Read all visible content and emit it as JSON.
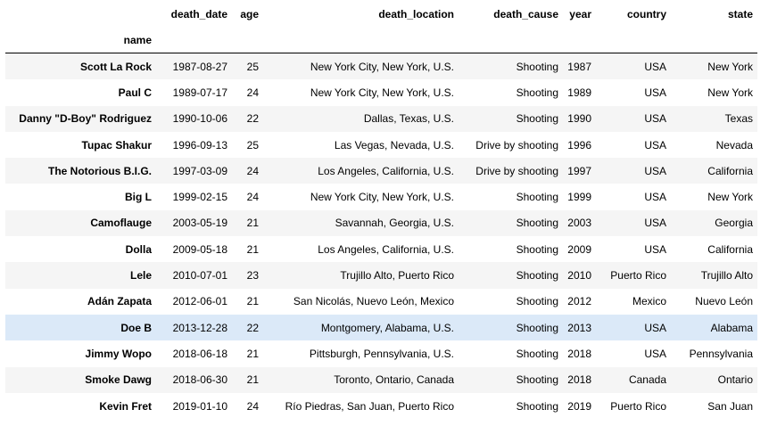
{
  "columns": [
    "death_date",
    "age",
    "death_location",
    "death_cause",
    "year",
    "country",
    "state"
  ],
  "index_name": "name",
  "rows": [
    {
      "name": "Scott La Rock",
      "cells": [
        "1987-08-27",
        "25",
        "New York City, New York, U.S.",
        "Shooting",
        "1987",
        "USA",
        "New York"
      ]
    },
    {
      "name": "Paul C",
      "cells": [
        "1989-07-17",
        "24",
        "New York City, New York, U.S.",
        "Shooting",
        "1989",
        "USA",
        "New York"
      ]
    },
    {
      "name": "Danny \"D-Boy\" Rodriguez",
      "cells": [
        "1990-10-06",
        "22",
        "Dallas, Texas, U.S.",
        "Shooting",
        "1990",
        "USA",
        "Texas"
      ]
    },
    {
      "name": "Tupac Shakur",
      "cells": [
        "1996-09-13",
        "25",
        "Las Vegas, Nevada, U.S.",
        "Drive by shooting",
        "1996",
        "USA",
        "Nevada"
      ]
    },
    {
      "name": "The Notorious B.I.G.",
      "cells": [
        "1997-03-09",
        "24",
        "Los Angeles, California, U.S.",
        "Drive by shooting",
        "1997",
        "USA",
        "California"
      ]
    },
    {
      "name": "Big L",
      "cells": [
        "1999-02-15",
        "24",
        "New York City, New York, U.S.",
        "Shooting",
        "1999",
        "USA",
        "New York"
      ]
    },
    {
      "name": "Camoflauge",
      "cells": [
        "2003-05-19",
        "21",
        "Savannah, Georgia, U.S.",
        "Shooting",
        "2003",
        "USA",
        "Georgia"
      ]
    },
    {
      "name": "Dolla",
      "cells": [
        "2009-05-18",
        "21",
        "Los Angeles, California, U.S.",
        "Shooting",
        "2009",
        "USA",
        "California"
      ]
    },
    {
      "name": "Lele",
      "cells": [
        "2010-07-01",
        "23",
        "Trujillo Alto, Puerto Rico",
        "Shooting",
        "2010",
        "Puerto Rico",
        "Trujillo Alto"
      ]
    },
    {
      "name": "Adán Zapata",
      "cells": [
        "2012-06-01",
        "21",
        "San Nicolás, Nuevo León, Mexico",
        "Shooting",
        "2012",
        "Mexico",
        "Nuevo León"
      ]
    },
    {
      "name": "Doe B",
      "cells": [
        "2013-12-28",
        "22",
        "Montgomery, Alabama, U.S.",
        "Shooting",
        "2013",
        "USA",
        "Alabama"
      ],
      "highlighted": true
    },
    {
      "name": "Jimmy Wopo",
      "cells": [
        "2018-06-18",
        "21",
        "Pittsburgh, Pennsylvania, U.S.",
        "Shooting",
        "2018",
        "USA",
        "Pennsylvania"
      ]
    },
    {
      "name": "Smoke Dawg",
      "cells": [
        "2018-06-30",
        "21",
        "Toronto, Ontario, Canada",
        "Shooting",
        "2018",
        "Canada",
        "Ontario"
      ]
    },
    {
      "name": "Kevin Fret",
      "cells": [
        "2019-01-10",
        "24",
        "Río Piedras, San Juan, Puerto Rico",
        "Shooting",
        "2019",
        "Puerto Rico",
        "San Juan"
      ]
    }
  ],
  "colors": {
    "stripe": "#f5f5f5",
    "hover": "#dbe9f8",
    "header_border": "#000000"
  }
}
